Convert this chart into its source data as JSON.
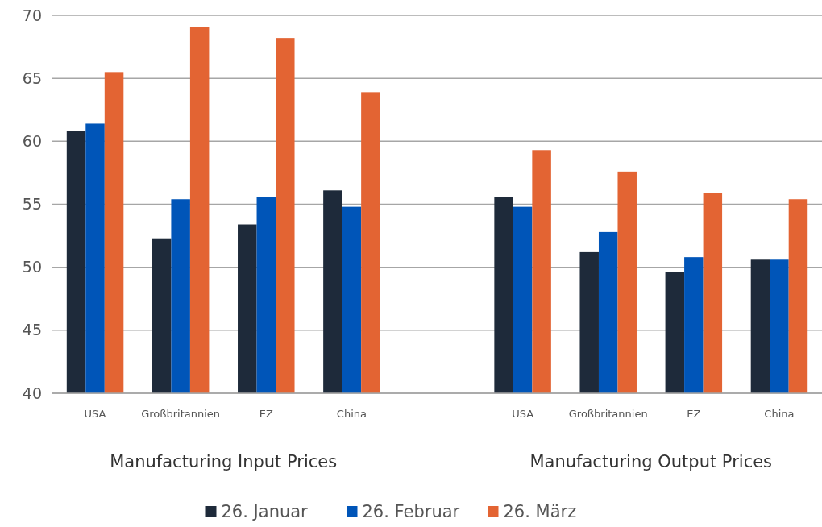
{
  "chart_data": {
    "type": "bar",
    "categories": [
      "USA",
      "Großbritannien",
      "EZ",
      "China",
      null,
      "USA",
      "Großbritannien",
      "EZ",
      "China"
    ],
    "series": [
      {
        "name": "26. Januar",
        "color": "#1e2a3a",
        "values": [
          60.8,
          52.3,
          53.4,
          56.1,
          null,
          55.6,
          51.2,
          49.6,
          50.6
        ]
      },
      {
        "name": "26. Februar",
        "color": "#0055b8",
        "values": [
          61.4,
          55.4,
          55.6,
          54.8,
          null,
          54.8,
          52.8,
          50.8,
          50.6
        ]
      },
      {
        "name": "26. März",
        "color": "#e36433",
        "values": [
          65.5,
          69.1,
          68.2,
          63.9,
          null,
          59.3,
          57.6,
          55.9,
          55.4
        ]
      }
    ],
    "ylim": [
      40,
      70
    ],
    "yticks": [
      40,
      45,
      50,
      55,
      60,
      65,
      70
    ],
    "grid": "y",
    "legend": "bottom",
    "annotations": [
      "Manufacturing Input Prices",
      "Manufacturing Output Prices"
    ]
  }
}
